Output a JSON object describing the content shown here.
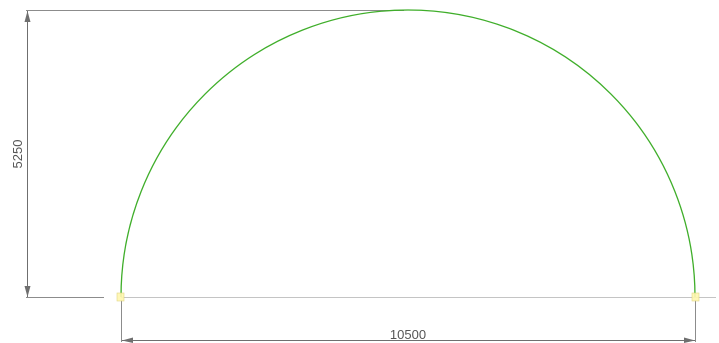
{
  "drawing": {
    "shape": "semicircular-arc",
    "arc_color": "#3fae2a",
    "dimension_color": "#6f6f6f",
    "grip_color": "#fff7b0"
  },
  "dimensions": {
    "height_value": "5250",
    "width_value": "10500"
  }
}
